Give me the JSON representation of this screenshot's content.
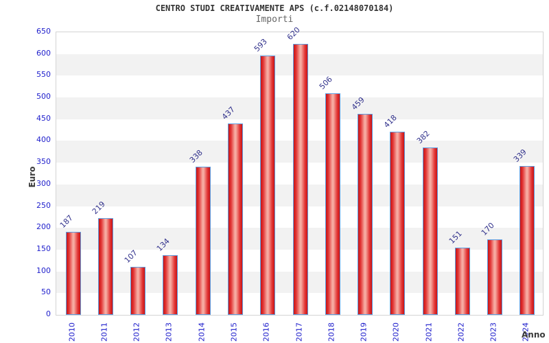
{
  "chart_data": {
    "type": "bar",
    "title": "CENTRO STUDI CREATIVAMENTE APS (c.f.02148070184)",
    "subtitle": "Importi",
    "xlabel": "Anno",
    "ylabel": "Euro",
    "categories": [
      "2010",
      "2011",
      "2012",
      "2013",
      "2014",
      "2015",
      "2016",
      "2017",
      "2018",
      "2019",
      "2020",
      "2021",
      "2022",
      "2023",
      "2024"
    ],
    "values": [
      187,
      219,
      107,
      134,
      338,
      437,
      593,
      620,
      506,
      459,
      418,
      382,
      151,
      170,
      339
    ],
    "ylim": [
      0,
      650
    ],
    "ytick_step": 50,
    "grid": "alternating horizontal bands every 50",
    "legend": "none",
    "colors": {
      "bar_edge": "#c81414",
      "bar_center": "#f6aba1",
      "bar_border": "#5c9ce0",
      "tick_label": "#2020cc",
      "value_label": "#32328c",
      "band": "#f2f2f2",
      "plot_border": "#d3d3d3",
      "title_text": "#333333",
      "subtitle_text": "#666666",
      "axis_name_text": "#3a3a3a"
    }
  }
}
